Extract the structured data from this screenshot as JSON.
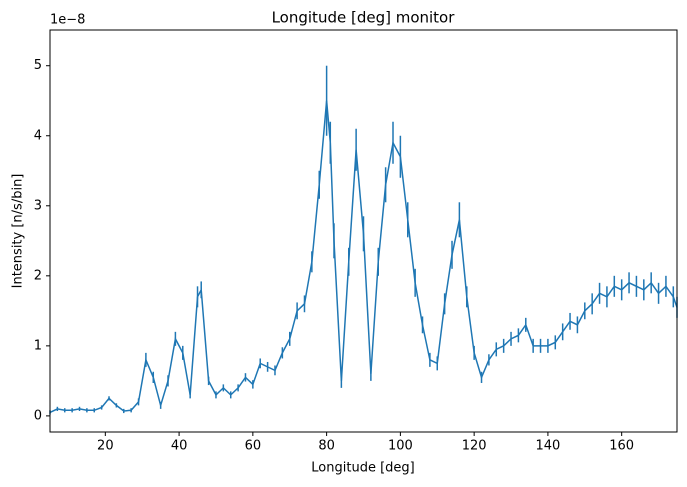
{
  "chart_data": {
    "type": "line",
    "title": "Longitude [deg] monitor",
    "xlabel": "Longitude [deg]",
    "ylabel": "Intensity [n/s/bin]",
    "offset_text": "1e−8",
    "xlim": [
      5,
      175
    ],
    "ylim": [
      -0.23,
      5.51
    ],
    "xticks": [
      20,
      40,
      60,
      80,
      100,
      120,
      140,
      160
    ],
    "yticks": [
      0,
      1,
      2,
      3,
      4,
      5
    ],
    "x": [
      5,
      7,
      9,
      11,
      13,
      15,
      17,
      19,
      21,
      23,
      25,
      27,
      29,
      31,
      33,
      35,
      37,
      39,
      41,
      43,
      45,
      46,
      48,
      50,
      52,
      54,
      56,
      58,
      60,
      62,
      64,
      66,
      68,
      70,
      72,
      74,
      76,
      78,
      80,
      81,
      82,
      84,
      86,
      88,
      90,
      92,
      94,
      96,
      98,
      100,
      102,
      104,
      106,
      108,
      110,
      112,
      114,
      116,
      118,
      120,
      122,
      124,
      126,
      128,
      130,
      132,
      134,
      136,
      138,
      140,
      142,
      144,
      146,
      148,
      150,
      152,
      154,
      156,
      158,
      160,
      162,
      164,
      166,
      168,
      170,
      172,
      174,
      175
    ],
    "series": [
      {
        "color": "#1f77b4",
        "values": [
          0.05,
          0.1,
          0.08,
          0.08,
          0.1,
          0.08,
          0.08,
          0.12,
          0.25,
          0.15,
          0.07,
          0.08,
          0.2,
          0.8,
          0.55,
          0.15,
          0.5,
          1.1,
          0.9,
          0.3,
          1.7,
          1.8,
          0.5,
          0.3,
          0.4,
          0.3,
          0.4,
          0.55,
          0.45,
          0.75,
          0.7,
          0.65,
          0.9,
          1.1,
          1.5,
          1.6,
          2.2,
          3.3,
          4.5,
          3.9,
          2.5,
          0.5,
          2.2,
          3.8,
          2.6,
          0.6,
          2.2,
          3.3,
          3.9,
          3.7,
          2.8,
          1.9,
          1.3,
          0.8,
          0.75,
          1.6,
          2.3,
          2.8,
          1.7,
          0.9,
          0.55,
          0.8,
          0.95,
          1.0,
          1.1,
          1.15,
          1.3,
          1.0,
          1.0,
          1.0,
          1.05,
          1.2,
          1.35,
          1.3,
          1.5,
          1.6,
          1.75,
          1.7,
          1.85,
          1.8,
          1.9,
          1.85,
          1.8,
          1.9,
          1.75,
          1.85,
          1.7,
          1.55
        ],
        "errors": [
          0.03,
          0.03,
          0.03,
          0.03,
          0.03,
          0.03,
          0.03,
          0.03,
          0.03,
          0.03,
          0.03,
          0.03,
          0.05,
          0.1,
          0.08,
          0.05,
          0.08,
          0.1,
          0.1,
          0.05,
          0.15,
          0.12,
          0.06,
          0.05,
          0.05,
          0.05,
          0.05,
          0.06,
          0.06,
          0.07,
          0.07,
          0.07,
          0.08,
          0.1,
          0.12,
          0.12,
          0.15,
          0.2,
          0.5,
          0.3,
          0.25,
          0.1,
          0.2,
          0.3,
          0.25,
          0.1,
          0.2,
          0.25,
          0.3,
          0.3,
          0.25,
          0.2,
          0.12,
          0.1,
          0.1,
          0.15,
          0.2,
          0.25,
          0.15,
          0.1,
          0.08,
          0.08,
          0.1,
          0.1,
          0.1,
          0.1,
          0.1,
          0.1,
          0.1,
          0.1,
          0.1,
          0.12,
          0.12,
          0.12,
          0.12,
          0.15,
          0.15,
          0.15,
          0.15,
          0.15,
          0.15,
          0.15,
          0.15,
          0.15,
          0.15,
          0.15,
          0.15,
          0.15
        ]
      }
    ]
  }
}
